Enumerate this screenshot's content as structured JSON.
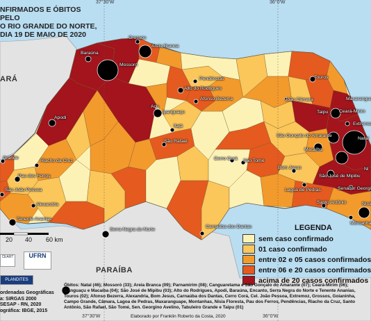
{
  "title": {
    "line1": "NFIRMADOS E ÓBITOS PELO",
    "line2": "O RIO GRANDE DO NORTE,",
    "line3": "DIA 19 DE MAIO DE 2020"
  },
  "coordinates": {
    "top_left": "37°30'W",
    "top_right": "36°0'W",
    "bottom_left": "37°30'W",
    "bottom_right": "36°0'W"
  },
  "neighbors": {
    "ceara": "ARÁ",
    "paraiba": "PARAÍBA"
  },
  "cities": [
    "Grossos",
    "Areia Branca",
    "Baraúna",
    "Mossoró",
    "Pendências",
    "Alto do Rodrigues",
    "Afonso Bezerra",
    "Açu",
    "Ipanguaçu",
    "Itajá",
    "São Rafael",
    "Apodi",
    "Touros",
    "João Câmara",
    "Taipu",
    "Ceará-Mirim",
    "Maxaranguape",
    "Extremoz",
    "Natal",
    "São Gonçalo do Amarante",
    "Macaíba",
    "São José de Mipibu",
    "Bom Jesus",
    "Cerro Corá",
    "São Tomé",
    "Lagoa de Pedras",
    "Senador Georgino",
    "Santo Antônio",
    "Montanhas",
    "Nísia",
    "Riacho da Cruz",
    "Pau dos Ferros",
    "São João Pessoa",
    "Alexandria",
    "Tenente Ananias",
    "Serra Negra do Norte",
    "Carnaúba dos Dantas",
    "Grande",
    "Ni"
  ],
  "legend": {
    "title": "LEGENDA",
    "items": [
      {
        "label": "sem caso confirmado",
        "color": "#fdf2b6"
      },
      {
        "label": "01 caso confirmado",
        "color": "#fbc65a"
      },
      {
        "label": "entre 02 e 05 casos confirmados",
        "color": "#f39a2c"
      },
      {
        "label": "entre 06 e 20 casos confirmados",
        "color": "#e55a1f"
      },
      {
        "label": "acima de 20 casos confirmados",
        "color": "#a3141c"
      }
    ]
  },
  "obitos_text": "Óbitos: Natal (46); Mossoró (33); Areia Branca (09); Parnamirim (08); Canguaretama e São Gonçalo do Amarante (07); Ceará-Mirim (06); Ipanguaçu e Macaíba (04); São José de Mipibu (03); Alto do Rodrigues, Apodi, Baraúna, Encanto, Serra Negra do Norte e Tenente Ananias, Touros (02); Afonso Bezerra, Alexandria, Bom Jesus, Carnaúba dos Dantas, Cerro Corá, Cel. João Pessoa, Extremoz, Grossos, Goianinha, Campo Grande, Câmara, Lagoa de Pedras, Maxaranguape, Montanhas, Nísia Floresta, Pau dos Ferros, Pendências, Riacho da Cruz, Santo Antônio, São Rafael, São Tomé, Sen. Georgino Avelino, Tabuleiro Grande e Taipu (01)",
  "credit": "Elaborado por Franklin Roberto da Costa, 2020",
  "left_info": {
    "line1": "ordenadas Geográficas",
    "line2": "a: SIRGAS 2000",
    "line3": "SESAP - RN, 2020",
    "line4": "ográfica: IBGE, 2015"
  },
  "scale": {
    "v20": "20",
    "v40": "40",
    "v60": "60 km"
  },
  "logos": {
    "ufrn": "UFRN",
    "plandites": "PLANDITES",
    "ceart": "CEART"
  },
  "colors": {
    "sea": "#b9ddf1",
    "outside": "#e3e3e3",
    "c0": "#fdf2b6",
    "c1": "#fbc65a",
    "c2": "#f39a2c",
    "c3": "#e55a1f",
    "c4": "#a3141c"
  }
}
